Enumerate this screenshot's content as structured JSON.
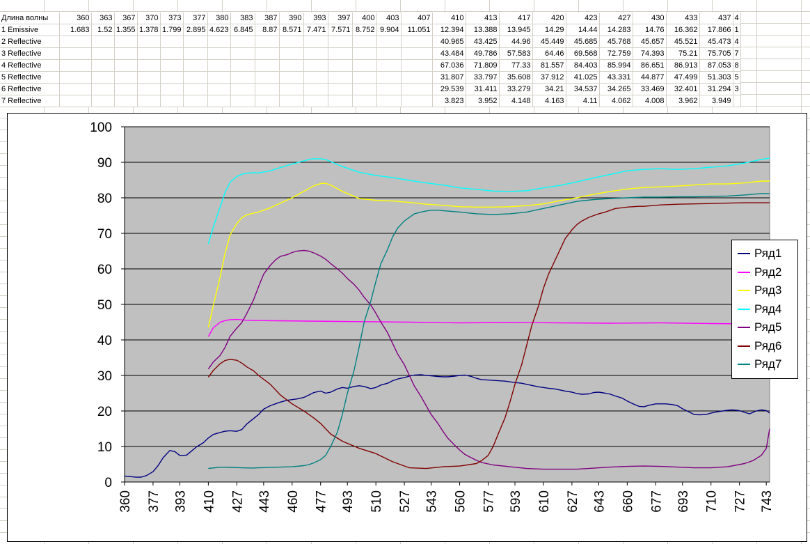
{
  "sheet": {
    "header_label": "Длина волны",
    "header_values": [
      "360",
      "363",
      "367",
      "370",
      "373",
      "377",
      "380",
      "383",
      "387",
      "390",
      "393",
      "397",
      "400",
      "403",
      "407",
      "410",
      "413",
      "417",
      "420",
      "423",
      "427",
      "430",
      "433",
      "437",
      "4"
    ],
    "rows": [
      {
        "label": "1 Emissive",
        "values": [
          "1.683",
          "1.52",
          "1.355",
          "1.378",
          "1.799",
          "2.895",
          "4.623",
          "6.845",
          "8.87",
          "8.571",
          "7.471",
          "7.571",
          "8.752",
          "9.904",
          "11.051",
          "12.394",
          "13.388",
          "13.945",
          "14.29",
          "14.44",
          "14.283",
          "14.76",
          "16.362",
          "17.866",
          "1"
        ]
      },
      {
        "label": "2 Reflective",
        "values": [
          "",
          "",
          "",
          "",
          "",
          "",
          "",
          "",
          "",
          "",
          "",
          "",
          "",
          "",
          "",
          "40.965",
          "43.425",
          "44.96",
          "45.449",
          "45.685",
          "45.768",
          "45.657",
          "45.521",
          "45.473",
          "4"
        ]
      },
      {
        "label": "3 Reflective",
        "values": [
          "",
          "",
          "",
          "",
          "",
          "",
          "",
          "",
          "",
          "",
          "",
          "",
          "",
          "",
          "",
          "43.484",
          "49.786",
          "57.583",
          "64.46",
          "69.568",
          "72.759",
          "74.393",
          "75.21",
          "75.705",
          "7"
        ]
      },
      {
        "label": "4 Reflective",
        "values": [
          "",
          "",
          "",
          "",
          "",
          "",
          "",
          "",
          "",
          "",
          "",
          "",
          "",
          "",
          "",
          "67.036",
          "71.809",
          "77.33",
          "81.557",
          "84.403",
          "85.994",
          "86.651",
          "86.913",
          "87.053",
          "8"
        ]
      },
      {
        "label": "5 Reflective",
        "values": [
          "",
          "",
          "",
          "",
          "",
          "",
          "",
          "",
          "",
          "",
          "",
          "",
          "",
          "",
          "",
          "31.807",
          "33.797",
          "35.608",
          "37.912",
          "41.025",
          "43.331",
          "44.877",
          "47.499",
          "51.303",
          "5"
        ]
      },
      {
        "label": "6 Reflective",
        "values": [
          "",
          "",
          "",
          "",
          "",
          "",
          "",
          "",
          "",
          "",
          "",
          "",
          "",
          "",
          "",
          "29.539",
          "31.411",
          "33.279",
          "34.21",
          "34.537",
          "34.265",
          "33.469",
          "32.401",
          "31.294",
          "3"
        ]
      },
      {
        "label": "7 Reflective",
        "values": [
          "",
          "",
          "",
          "",
          "",
          "",
          "",
          "",
          "",
          "",
          "",
          "",
          "",
          "",
          "",
          "3.823",
          "3.952",
          "4.148",
          "4.163",
          "4.11",
          "4.062",
          "4.008",
          "3.962",
          "3.949",
          ""
        ]
      }
    ]
  },
  "chart_data": {
    "type": "line",
    "x": [
      360,
      377,
      393,
      410,
      427,
      443,
      460,
      477,
      493,
      510,
      527,
      543,
      560,
      577,
      593,
      610,
      627,
      643,
      660,
      677,
      693,
      710,
      727,
      743
    ],
    "x_tick_labels": [
      "360",
      "377",
      "393",
      "410",
      "427",
      "443",
      "460",
      "477",
      "493",
      "510",
      "527",
      "543",
      "560",
      "577",
      "593",
      "610",
      "627",
      "643",
      "660",
      "677",
      "693",
      "710",
      "727",
      "743"
    ],
    "y_tick_labels": [
      "0",
      "10",
      "20",
      "30",
      "40",
      "50",
      "60",
      "70",
      "80",
      "90",
      "100"
    ],
    "ylim": [
      0,
      100
    ],
    "xlim": [
      360,
      745
    ],
    "grid": "horizontal major",
    "legend_position": "right",
    "plot_background": "#c0c0c0",
    "series": [
      {
        "name": "Ряд1",
        "color": "#000080",
        "x": [
          360,
          363,
          367,
          370,
          373,
          377,
          380,
          383,
          387,
          390,
          393,
          397,
          400,
          403,
          407,
          410,
          413,
          417,
          420,
          423,
          427,
          430,
          433,
          437,
          440,
          443,
          447,
          450,
          453,
          457,
          460,
          463,
          467,
          470,
          473,
          477,
          480,
          483,
          487,
          490,
          493,
          497,
          500,
          503,
          507,
          510,
          513,
          517,
          520,
          523,
          527,
          530,
          533,
          537,
          540,
          543,
          547,
          550,
          553,
          557,
          560,
          563,
          567,
          570,
          573,
          577,
          580,
          583,
          587,
          590,
          593,
          597,
          600,
          603,
          607,
          610,
          613,
          617,
          620,
          623,
          627,
          630,
          633,
          637,
          640,
          643,
          647,
          650,
          653,
          657,
          660,
          663,
          667,
          670,
          673,
          677,
          680,
          683,
          687,
          690,
          693,
          697,
          700,
          703,
          707,
          710,
          713,
          717,
          720,
          723,
          727,
          730,
          733,
          737,
          740,
          743,
          745
        ],
        "values": [
          1.683,
          1.52,
          1.355,
          1.378,
          1.799,
          2.895,
          4.623,
          6.845,
          8.87,
          8.571,
          7.471,
          7.571,
          8.752,
          9.904,
          11.051,
          12.394,
          13.388,
          13.945,
          14.29,
          14.44,
          14.283,
          14.76,
          16.362,
          17.866,
          19,
          20.5,
          21.5,
          22,
          22.5,
          23,
          23.2,
          23.4,
          23.8,
          24.5,
          25.2,
          25.6,
          25,
          25.3,
          26.2,
          26.6,
          26.4,
          26.9,
          27.1,
          26.9,
          26.3,
          26.6,
          27.3,
          27.8,
          28.5,
          29,
          29.4,
          29.8,
          30.1,
          30.2,
          30,
          29.9,
          29.7,
          29.6,
          29.6,
          29.8,
          30,
          30.1,
          29.7,
          29.2,
          28.8,
          28.7,
          28.6,
          28.5,
          28.4,
          28.2,
          28,
          27.8,
          27.5,
          27.2,
          26.8,
          26.6,
          26.4,
          26.2,
          25.9,
          25.6,
          25.3,
          24.9,
          24.7,
          24.8,
          25.2,
          25.3,
          25,
          24.7,
          24.2,
          23.6,
          22.8,
          22.1,
          21.3,
          21.2,
          21.6,
          22,
          22,
          22,
          21.8,
          21.5,
          20.6,
          19.7,
          19,
          18.9,
          19,
          19.4,
          19.7,
          20,
          20.2,
          20.3,
          20.1,
          19.6,
          19.2,
          20,
          20.3,
          20.1,
          19.4
        ]
      },
      {
        "name": "Ряд2",
        "color": "#ff00ff",
        "x": [
          410,
          413,
          417,
          420,
          423,
          427,
          430,
          433,
          437,
          450,
          470,
          490,
          510,
          530,
          560,
          590,
          620,
          650,
          680,
          710,
          730,
          745
        ],
        "values": [
          40.965,
          43.425,
          44.96,
          45.449,
          45.685,
          45.768,
          45.657,
          45.521,
          45.473,
          45.4,
          45.3,
          45.2,
          45.1,
          45,
          44.8,
          44.9,
          44.8,
          44.7,
          44.8,
          44.6,
          44.5,
          44.5
        ]
      },
      {
        "name": "Ряд3",
        "color": "#ffff00",
        "x": [
          410,
          413,
          417,
          420,
          423,
          427,
          430,
          433,
          437,
          440,
          447,
          453,
          460,
          467,
          470,
          473,
          477,
          480,
          483,
          490,
          500,
          510,
          520,
          530,
          540,
          550,
          560,
          570,
          580,
          590,
          600,
          610,
          620,
          630,
          640,
          650,
          660,
          670,
          680,
          690,
          700,
          710,
          720,
          730,
          740,
          745
        ],
        "values": [
          43.484,
          49.786,
          57.583,
          64.46,
          69.568,
          72.759,
          74.393,
          75.21,
          75.705,
          76,
          77.2,
          78.5,
          80,
          81.8,
          82.6,
          83.4,
          84,
          84.1,
          83.6,
          81.8,
          79.8,
          79.3,
          79.1,
          78.7,
          78.2,
          77.9,
          77.5,
          77.4,
          77.4,
          77.5,
          77.8,
          78.3,
          79.2,
          80,
          81,
          81.8,
          82.5,
          82.9,
          83.1,
          83.3,
          83.6,
          83.9,
          83.9,
          84.2,
          84.7,
          84.7
        ]
      },
      {
        "name": "Ряд4",
        "color": "#00ffff",
        "x": [
          410,
          413,
          417,
          420,
          423,
          427,
          430,
          433,
          437,
          440,
          447,
          453,
          460,
          467,
          470,
          473,
          477,
          480,
          483,
          490,
          500,
          510,
          520,
          530,
          540,
          550,
          560,
          570,
          580,
          590,
          600,
          610,
          620,
          630,
          640,
          650,
          660,
          670,
          680,
          690,
          700,
          710,
          720,
          730,
          740,
          745
        ],
        "values": [
          67.036,
          71.809,
          77.33,
          81.557,
          84.403,
          85.994,
          86.651,
          86.913,
          87.053,
          87,
          87.6,
          88.5,
          89.5,
          90.4,
          90.8,
          91,
          91,
          90.8,
          90.2,
          88.8,
          87.2,
          86.3,
          85.7,
          84.9,
          84.2,
          83.6,
          82.8,
          82.4,
          81.9,
          81.8,
          82,
          82.8,
          83.5,
          84.5,
          85.6,
          86.6,
          87.6,
          88,
          88.2,
          88,
          88.2,
          88.6,
          89,
          89.8,
          90.8,
          91.2
        ]
      },
      {
        "name": "Ряд5",
        "color": "#800080",
        "x": [
          410,
          413,
          417,
          420,
          423,
          427,
          430,
          433,
          437,
          440,
          443,
          447,
          450,
          453,
          457,
          460,
          463,
          467,
          470,
          473,
          477,
          480,
          483,
          487,
          490,
          493,
          497,
          500,
          503,
          507,
          510,
          513,
          517,
          520,
          523,
          527,
          530,
          533,
          537,
          540,
          543,
          547,
          550,
          553,
          557,
          560,
          563,
          567,
          570,
          573,
          577,
          580,
          590,
          600,
          610,
          620,
          630,
          640,
          650,
          660,
          670,
          680,
          690,
          700,
          710,
          720,
          730,
          735,
          740,
          743,
          745
        ],
        "values": [
          31.807,
          33.797,
          35.608,
          37.912,
          41.025,
          43.331,
          44.877,
          47.499,
          51.303,
          55,
          58.5,
          61,
          62.5,
          63.5,
          64,
          64.6,
          65,
          65.2,
          65,
          64.5,
          63.6,
          62.7,
          61.5,
          60,
          58.8,
          57.3,
          55.6,
          54,
          52,
          49.8,
          47.5,
          45,
          42,
          39,
          36,
          33,
          30,
          27,
          24,
          21.5,
          19,
          16.5,
          14.3,
          12.3,
          10.4,
          9,
          7.8,
          6.8,
          6.1,
          5.5,
          5.1,
          4.8,
          4.3,
          3.8,
          3.6,
          3.6,
          3.6,
          3.9,
          4.2,
          4.4,
          4.5,
          4.4,
          4.2,
          4,
          4,
          4.3,
          5.2,
          6,
          7.5,
          9.5,
          15
        ]
      },
      {
        "name": "Ряд6",
        "color": "#800000",
        "x": [
          410,
          413,
          417,
          420,
          423,
          427,
          430,
          433,
          437,
          440,
          447,
          453,
          460,
          467,
          470,
          473,
          477,
          480,
          483,
          490,
          500,
          510,
          520,
          530,
          540,
          550,
          560,
          570,
          573,
          577,
          580,
          583,
          587,
          590,
          593,
          597,
          600,
          603,
          607,
          610,
          613,
          617,
          620,
          623,
          627,
          630,
          633,
          637,
          640,
          643,
          647,
          650,
          653,
          657,
          660,
          663,
          667,
          670,
          680,
          690,
          700,
          710,
          720,
          730,
          740,
          745
        ],
        "values": [
          29.539,
          31.411,
          33.279,
          34.21,
          34.537,
          34.265,
          33.469,
          32.401,
          31.294,
          30,
          27.5,
          24.5,
          22,
          20,
          19,
          18,
          16.5,
          15,
          13.5,
          11.5,
          9.5,
          8,
          5.7,
          4,
          3.8,
          4.3,
          4.5,
          5.2,
          6,
          7.5,
          10,
          13.5,
          18,
          22.5,
          27.5,
          33,
          38.5,
          44,
          49.5,
          54.5,
          58.5,
          62.5,
          65.5,
          68.5,
          71,
          72.5,
          73.5,
          74.5,
          75,
          75.5,
          76,
          76.5,
          77,
          77.2,
          77.4,
          77.5,
          77.6,
          77.6,
          78,
          78.2,
          78.3,
          78.4,
          78.5,
          78.6,
          78.6,
          78.6
        ]
      },
      {
        "name": "Ряд7",
        "color": "#008080",
        "x": [
          410,
          413,
          417,
          420,
          423,
          427,
          430,
          433,
          437,
          440,
          447,
          453,
          460,
          467,
          470,
          473,
          477,
          480,
          483,
          487,
          490,
          493,
          497,
          500,
          503,
          507,
          510,
          513,
          517,
          520,
          523,
          527,
          530,
          533,
          537,
          540,
          543,
          547,
          550,
          560,
          570,
          580,
          590,
          600,
          610,
          620,
          630,
          640,
          650,
          660,
          670,
          680,
          690,
          700,
          710,
          720,
          730,
          740,
          745
        ],
        "values": [
          3.823,
          3.952,
          4.148,
          4.163,
          4.11,
          4.062,
          4.008,
          3.962,
          3.949,
          4,
          4.1,
          4.2,
          4.3,
          4.6,
          4.9,
          5.4,
          6.3,
          7.5,
          10,
          14,
          19,
          25,
          31.5,
          38,
          45,
          51,
          56.5,
          61.5,
          65.5,
          69,
          71.5,
          73.5,
          74.5,
          75.5,
          76,
          76.3,
          76.5,
          76.5,
          76.4,
          76,
          75.5,
          75.3,
          75.5,
          76,
          77,
          78,
          79,
          79.5,
          79.8,
          80,
          80.2,
          80.2,
          80.3,
          80.3,
          80.4,
          80.5,
          80.8,
          81.2,
          81.2
        ]
      }
    ]
  }
}
